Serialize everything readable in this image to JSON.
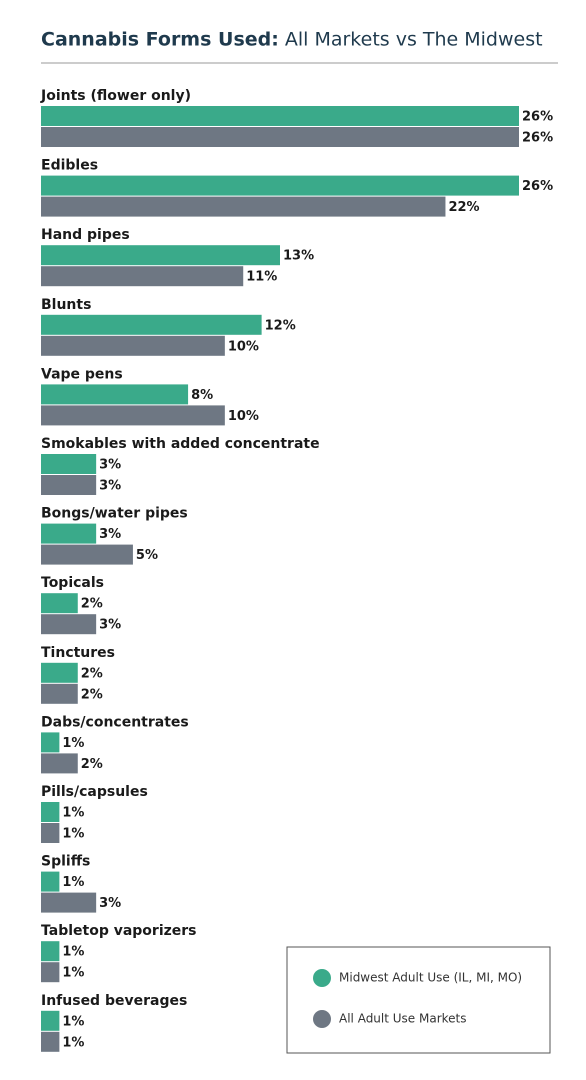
{
  "chart_data": {
    "type": "bar",
    "orientation": "horizontal",
    "title": "Cannabis Forms Used:",
    "subtitle": "All Markets vs The Midwest",
    "categories": [
      "Joints (flower only)",
      "Edibles",
      "Hand pipes",
      "Blunts",
      "Vape pens",
      "Smokables with added concentrate",
      "Bongs/water pipes",
      "Topicals",
      "Tinctures",
      "Dabs/concentrates",
      "Pills/capsules",
      "Spliffs",
      "Tabletop vaporizers",
      "Infused beverages"
    ],
    "series": [
      {
        "name": "Midwest Adult Use (IL, MI, MO)",
        "color": "#3aaa8a",
        "values": [
          26,
          26,
          13,
          12,
          8,
          3,
          3,
          2,
          2,
          1,
          1,
          1,
          1,
          1
        ],
        "value_labels": [
          "26%",
          "26%",
          "13%",
          "12%",
          "8%",
          "3%",
          "3%",
          "2%",
          "2%",
          "1%",
          "1%",
          "1%",
          "1%",
          "1%"
        ]
      },
      {
        "name": "All Adult Use Markets",
        "color": "#6e7783",
        "values": [
          26,
          22,
          11,
          10,
          10,
          3,
          5,
          3,
          2,
          2,
          1,
          3,
          1,
          1
        ],
        "value_labels": [
          "26%",
          "22%",
          "11%",
          "10%",
          "10%",
          "3%",
          "5%",
          "3%",
          "2%",
          "2%",
          "1%",
          "3%",
          "1%",
          "1%"
        ]
      }
    ],
    "legend": "lower right"
  }
}
